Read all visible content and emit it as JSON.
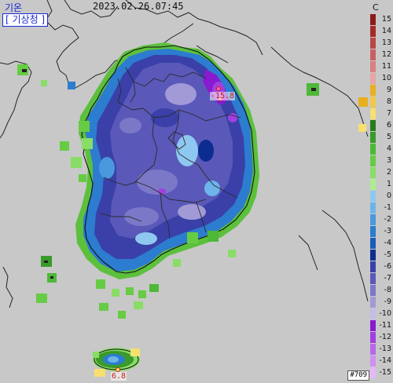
{
  "header": {
    "title": "기온",
    "timestamp": "2023.02.26.07:45",
    "agency": "[ 기상청 ]",
    "unit": "C"
  },
  "labels": {
    "min_value": "-15.8",
    "max_value": "6.8",
    "station": "#709"
  },
  "legend": {
    "items": [
      {
        "value": "15",
        "color": "#8c1c1c"
      },
      {
        "value": "14",
        "color": "#a32a2a"
      },
      {
        "value": "13",
        "color": "#b84848"
      },
      {
        "value": "12",
        "color": "#c86060"
      },
      {
        "value": "11",
        "color": "#d88080"
      },
      {
        "value": "10",
        "color": "#e6a6a6"
      },
      {
        "value": "9",
        "color": "#e8b020"
      },
      {
        "value": "8",
        "color": "#f0c848"
      },
      {
        "value": "7",
        "color": "#f6e070"
      },
      {
        "value": "6",
        "color": "#2a7a1e"
      },
      {
        "value": "5",
        "color": "#3a9a2a"
      },
      {
        "value": "4",
        "color": "#4eb838"
      },
      {
        "value": "3",
        "color": "#66cc44"
      },
      {
        "value": "2",
        "color": "#88dd66"
      },
      {
        "value": "1",
        "color": "#aaee90"
      },
      {
        "value": "0",
        "color": "#8ec8f0"
      },
      {
        "value": "-1",
        "color": "#6cb4ea"
      },
      {
        "value": "-2",
        "color": "#4a98de"
      },
      {
        "value": "-3",
        "color": "#2c7ccf"
      },
      {
        "value": "-4",
        "color": "#1a5cb8"
      },
      {
        "value": "-5",
        "color": "#0c2c90"
      },
      {
        "value": "-6",
        "color": "#3a40a8"
      },
      {
        "value": "-7",
        "color": "#5a58b8"
      },
      {
        "value": "-8",
        "color": "#7c78c8"
      },
      {
        "value": "-9",
        "color": "#a29ad6"
      },
      {
        "value": "-10",
        "color": "#c6bce6"
      },
      {
        "value": "-11",
        "color": "#8a1ad0"
      },
      {
        "value": "-12",
        "color": "#a040e0"
      },
      {
        "value": "-13",
        "color": "#b868ea"
      },
      {
        "value": "-14",
        "color": "#d090f2"
      },
      {
        "value": "-15",
        "color": "#e4b8f8"
      }
    ]
  }
}
